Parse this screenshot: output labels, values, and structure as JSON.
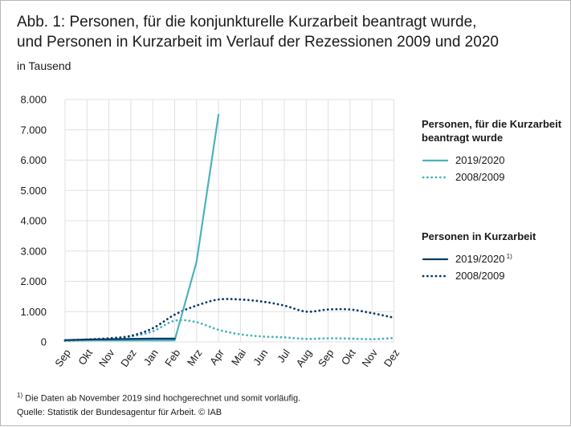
{
  "title_line1": "Abb. 1:  Personen, für die konjunkturelle Kurzarbeit beantragt wurde,",
  "title_line2": "und Personen in Kurzarbeit im Verlauf der Rezessionen 2009 und 2020",
  "unit": "in Tausend",
  "footnote_mark": "1)",
  "footnote_text": " Die Daten ab November 2019 sind hochgerechnet und somit vorläufig.",
  "source": "Quelle: Statistik der Bundesagentur für Arbeit. © IAB",
  "colors": {
    "teal": "#4bb3bd",
    "navy": "#0c3a66",
    "grid": "#e0e0e0"
  },
  "chart_data": {
    "type": "line",
    "categories": [
      "Sep",
      "Okt",
      "Nov",
      "Dez",
      "Jan",
      "Feb",
      "Mrz",
      "Apr",
      "Mai",
      "Jun",
      "Jul",
      "Aug",
      "Sep",
      "Okt",
      "Nov",
      "Dez"
    ],
    "ylim": [
      0,
      8000
    ],
    "yticks": [
      0,
      1000,
      2000,
      3000,
      4000,
      5000,
      6000,
      7000,
      8000
    ],
    "ytick_labels": [
      "0",
      "1.000",
      "2.000",
      "3.000",
      "4.000",
      "5.000",
      "6.000",
      "7.000",
      "8.000"
    ],
    "grid": true,
    "legend_position": "right",
    "legend_groups": [
      {
        "heading_line1": "Personen, für die Kurzarbeit",
        "heading_line2": "beantragt wurde",
        "series": [
          {
            "name": "2019/2020",
            "style": "solid",
            "color": "teal",
            "values": [
              50,
              50,
              50,
              50,
              50,
              50,
              2650,
              7500,
              null,
              null,
              null,
              null,
              null,
              null,
              null,
              null
            ]
          },
          {
            "name": "2008/2009",
            "style": "dotted",
            "color": "teal",
            "values": [
              30,
              60,
              100,
              180,
              350,
              700,
              650,
              400,
              250,
              180,
              150,
              100,
              120,
              110,
              90,
              130
            ]
          }
        ]
      },
      {
        "heading_line1": "Personen in Kurzarbeit",
        "heading_line2": "",
        "series": [
          {
            "name": "2019/2020",
            "name_sup": "1)",
            "style": "solid",
            "color": "navy",
            "values": [
              60,
              80,
              90,
              100,
              110,
              110,
              null,
              null,
              null,
              null,
              null,
              null,
              null,
              null,
              null,
              null
            ]
          },
          {
            "name": "2008/2009",
            "style": "dotted",
            "color": "navy",
            "values": [
              50,
              80,
              120,
              200,
              450,
              900,
              1200,
              1400,
              1400,
              1330,
              1200,
              1000,
              1070,
              1070,
              950,
              800
            ]
          }
        ]
      }
    ]
  }
}
